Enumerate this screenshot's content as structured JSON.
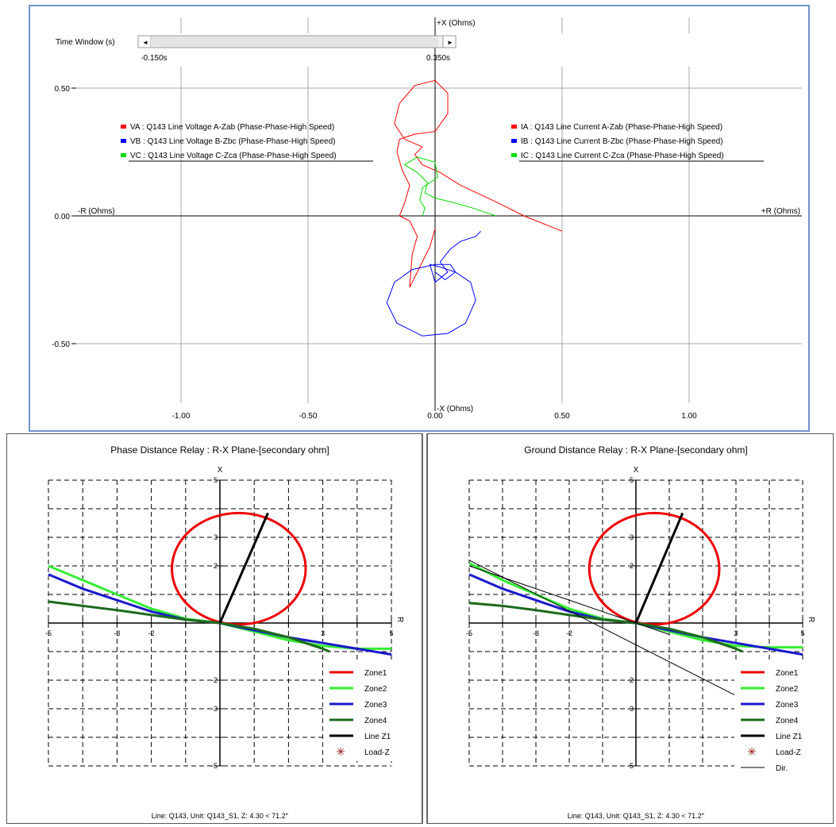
{
  "top": {
    "time_window_label": "Time Window (s)",
    "time_start": "-0.150s",
    "time_end": "0.350s",
    "scroll_left": "◄",
    "scroll_right": "►",
    "axis_pos_x": "+X (Ohms)",
    "axis_neg_x": "-X (Ohms)",
    "axis_neg_r": "-R (Ohms)",
    "axis_pos_r": "+R (Ohms)",
    "legend_left": [
      {
        "label": "VA : Q143 Line Voltage A-Zab (Phase-Phase-High Speed)",
        "color": "#ff0000"
      },
      {
        "label": "VB : Q143 Line Voltage B-Zbc (Phase-Phase-High Speed)",
        "color": "#0000ff"
      },
      {
        "label": "VC : Q143 Line Voltage C-Zca (Phase-Phase-High Speed)",
        "color": "#00dd00"
      }
    ],
    "legend_right": [
      {
        "label": "IA : Q143 Line Current A-Zab (Phase-Phase-High Speed)",
        "color": "#ff0000"
      },
      {
        "label": "IB : Q143 Line Current B-Zbc (Phase-Phase-High Speed)",
        "color": "#0000ff"
      },
      {
        "label": "IC : Q143 Line Current C-Zca (Phase-Phase-High Speed)",
        "color": "#00dd00"
      }
    ]
  },
  "chart_data": [
    {
      "type": "line",
      "xlabel": "+R (Ohms)",
      "ylabel": "+X (Ohms)",
      "xlim": [
        -1.45,
        1.45
      ],
      "ylim": [
        -0.78,
        0.78
      ],
      "x_ticks": [
        {
          "v": -1.0,
          "t": "-1.00"
        },
        {
          "v": -0.5,
          "t": "-0.50"
        },
        {
          "v": 0.0,
          "t": "0.00"
        },
        {
          "v": 0.5,
          "t": "0.50"
        },
        {
          "v": 1.0,
          "t": "1.00"
        }
      ],
      "y_ticks": [
        {
          "v": 0.5,
          "t": "0.50"
        },
        {
          "v": 0.0,
          "t": "0.00"
        },
        {
          "v": -0.5,
          "t": "-0.50"
        }
      ],
      "grid": true,
      "series": [
        {
          "name": "VA : Q143 Line Voltage A-Zab (Phase-Phase-High Speed)",
          "color": "#ff0000",
          "points": [
            [
              0.5,
              -0.06
            ],
            [
              0.35,
              0.0
            ],
            [
              0.25,
              0.05
            ],
            [
              0.1,
              0.12
            ],
            [
              0.02,
              0.17
            ],
            [
              -0.05,
              0.2
            ],
            [
              -0.08,
              0.24
            ],
            [
              -0.05,
              0.27
            ],
            [
              -0.12,
              0.3
            ],
            [
              -0.16,
              0.36
            ],
            [
              -0.14,
              0.44
            ],
            [
              -0.08,
              0.51
            ],
            [
              0.0,
              0.53
            ],
            [
              0.05,
              0.48
            ],
            [
              0.05,
              0.4
            ],
            [
              0.0,
              0.33
            ],
            [
              -0.08,
              0.32
            ],
            [
              -0.14,
              0.3
            ],
            [
              -0.15,
              0.25
            ],
            [
              -0.13,
              0.18
            ],
            [
              -0.1,
              0.12
            ],
            [
              -0.12,
              0.05
            ],
            [
              -0.14,
              0.0
            ],
            [
              -0.1,
              -0.02
            ],
            [
              -0.07,
              -0.08
            ],
            [
              -0.09,
              -0.15
            ],
            [
              -0.1,
              -0.28
            ],
            [
              -0.06,
              -0.2
            ],
            [
              -0.02,
              -0.12
            ],
            [
              0.0,
              -0.05
            ]
          ]
        },
        {
          "name": "VB : Q143 Line Voltage B-Zbc (Phase-Phase-High Speed)",
          "color": "#0000ff",
          "points": [
            [
              0.18,
              -0.06
            ],
            [
              0.16,
              -0.08
            ],
            [
              0.1,
              -0.1
            ],
            [
              0.06,
              -0.13
            ],
            [
              0.02,
              -0.18
            ],
            [
              0.05,
              -0.22
            ],
            [
              0.0,
              -0.26
            ],
            [
              -0.02,
              -0.19
            ],
            [
              0.02,
              -0.2
            ],
            [
              0.08,
              -0.22
            ],
            [
              0.14,
              -0.26
            ],
            [
              0.16,
              -0.33
            ],
            [
              0.12,
              -0.42
            ],
            [
              0.05,
              -0.46
            ],
            [
              -0.05,
              -0.47
            ],
            [
              -0.15,
              -0.42
            ],
            [
              -0.19,
              -0.34
            ],
            [
              -0.16,
              -0.26
            ],
            [
              -0.09,
              -0.21
            ],
            [
              0.0,
              -0.19
            ],
            [
              0.06,
              -0.19
            ],
            [
              0.08,
              -0.22
            ],
            [
              0.04,
              -0.25
            ],
            [
              0.0,
              -0.22
            ]
          ]
        },
        {
          "name": "VC : Q143 Line Voltage C-Zca (Phase-Phase-High Speed)",
          "color": "#00dd00",
          "points": [
            [
              0.24,
              0.0
            ],
            [
              0.15,
              0.03
            ],
            [
              0.08,
              0.05
            ],
            [
              0.0,
              0.07
            ],
            [
              -0.04,
              0.09
            ],
            [
              -0.03,
              0.13
            ],
            [
              -0.07,
              0.17
            ],
            [
              -0.12,
              0.2
            ],
            [
              -0.07,
              0.23
            ],
            [
              0.0,
              0.21
            ],
            [
              0.01,
              0.15
            ],
            [
              -0.05,
              0.11
            ],
            [
              -0.06,
              0.06
            ],
            [
              -0.04,
              0.03
            ],
            [
              -0.05,
              0.0
            ]
          ]
        }
      ]
    },
    {
      "type": "line",
      "title": "Phase Distance Relay : R-X Plane-[secondary ohm]",
      "xlabel": "R",
      "ylabel": "X",
      "xlim": [
        -5,
        5
      ],
      "ylim": [
        -5,
        5
      ],
      "x_ticks": [
        -5,
        -3,
        -2,
        3,
        5
      ],
      "y_ticks": [
        5,
        3,
        2,
        -2,
        -3,
        -5
      ],
      "grid": true,
      "legend": [
        "Zone1",
        "Zone2",
        "Zone3",
        "Zone4",
        "Line Z1",
        "Load-Z"
      ],
      "footer": "Line: Q143, Unit: Q143_S1, Z:  4.30 < 71.2°",
      "series": [
        {
          "name": "Zone1",
          "color": "#ee0000",
          "kind": "circle",
          "center": [
            0.55,
            1.9
          ],
          "radius": 1.95
        },
        {
          "name": "Zone2",
          "color": "#33ee33",
          "points": [
            [
              -5,
              2.0
            ],
            [
              -4,
              1.5
            ],
            [
              -3,
              1.0
            ],
            [
              -2,
              0.5
            ],
            [
              -1,
              0.15
            ],
            [
              0,
              0
            ],
            [
              1,
              -0.3
            ],
            [
              2,
              -0.6
            ],
            [
              3,
              -0.8
            ],
            [
              4,
              -0.9
            ],
            [
              5,
              -0.9
            ]
          ]
        },
        {
          "name": "Zone3",
          "color": "#1a1acc",
          "points": [
            [
              -5,
              1.7
            ],
            [
              -4,
              1.2
            ],
            [
              -3,
              0.8
            ],
            [
              -2,
              0.4
            ],
            [
              -1,
              0.12
            ],
            [
              0,
              0
            ],
            [
              1,
              -0.25
            ],
            [
              2,
              -0.5
            ],
            [
              3,
              -0.7
            ],
            [
              4,
              -0.9
            ],
            [
              5,
              -1.1
            ]
          ]
        },
        {
          "name": "Zone4",
          "color": "#1c6b1c",
          "points": [
            [
              -5,
              0.75
            ],
            [
              -4,
              0.6
            ],
            [
              -3,
              0.45
            ],
            [
              -2,
              0.28
            ],
            [
              -1,
              0.12
            ],
            [
              0,
              0
            ],
            [
              1,
              -0.2
            ],
            [
              2,
              -0.5
            ],
            [
              3,
              -0.9
            ],
            [
              3.2,
              -1.0
            ]
          ]
        },
        {
          "name": "Line Z1",
          "color": "#000000",
          "points": [
            [
              0,
              0
            ],
            [
              1.4,
              3.85
            ]
          ]
        }
      ]
    },
    {
      "type": "line",
      "title": "Ground Distance Relay : R-X Plane-[secondary ohm]",
      "xlabel": "R",
      "ylabel": "X",
      "xlim": [
        -5,
        5
      ],
      "ylim": [
        -5,
        5
      ],
      "x_ticks": [
        -5,
        -3,
        -2,
        3,
        5
      ],
      "y_ticks": [
        5,
        3,
        2,
        -2,
        -3,
        -5
      ],
      "grid": true,
      "legend": [
        "Zone1",
        "Zone2",
        "Zone3",
        "Zone4",
        "Line Z1",
        "Load-Z",
        "Dir."
      ],
      "footer": "Line: Q143, Unit: Q143_S1, Z:  4.30 < 71.2°",
      "series": [
        {
          "name": "Zone1",
          "color": "#ee0000",
          "kind": "circle",
          "center": [
            0.55,
            1.9
          ],
          "radius": 1.95
        },
        {
          "name": "Zone2",
          "color": "#33ee33",
          "points": [
            [
              -5,
              2.1
            ],
            [
              -4,
              1.5
            ],
            [
              -3,
              1.0
            ],
            [
              -2,
              0.5
            ],
            [
              -1,
              0.15
            ],
            [
              0,
              0
            ],
            [
              1,
              -0.3
            ],
            [
              2,
              -0.6
            ],
            [
              3,
              -0.8
            ],
            [
              4,
              -0.85
            ],
            [
              5,
              -0.85
            ]
          ]
        },
        {
          "name": "Zone3",
          "color": "#1a1acc",
          "points": [
            [
              -5,
              1.7
            ],
            [
              -4,
              1.2
            ],
            [
              -3,
              0.8
            ],
            [
              -2,
              0.4
            ],
            [
              -1,
              0.12
            ],
            [
              0,
              0
            ],
            [
              1,
              -0.25
            ],
            [
              2,
              -0.5
            ],
            [
              3,
              -0.7
            ],
            [
              4,
              -0.9
            ],
            [
              5,
              -1.1
            ]
          ]
        },
        {
          "name": "Zone4",
          "color": "#1c6b1c",
          "points": [
            [
              -5,
              0.7
            ],
            [
              -4,
              0.6
            ],
            [
              -3,
              0.45
            ],
            [
              -2,
              0.28
            ],
            [
              -1,
              0.12
            ],
            [
              0,
              0
            ],
            [
              1,
              -0.2
            ],
            [
              2,
              -0.5
            ],
            [
              3,
              -0.9
            ],
            [
              3.2,
              -1.0
            ]
          ]
        },
        {
          "name": "Line Z1",
          "color": "#000000",
          "points": [
            [
              0,
              0
            ],
            [
              1.4,
              3.85
            ]
          ]
        },
        {
          "name": "Dir.",
          "color": "#000000",
          "kind": "thin",
          "points": [
            [
              -5,
              2.2
            ],
            [
              3.1,
              -2.6
            ]
          ]
        },
        {
          "name": "Dir.",
          "color": "#000000",
          "kind": "thin",
          "points": [
            [
              -5,
              2.0
            ],
            [
              0,
              0
            ],
            [
              1,
              -0.4
            ]
          ]
        }
      ]
    }
  ]
}
